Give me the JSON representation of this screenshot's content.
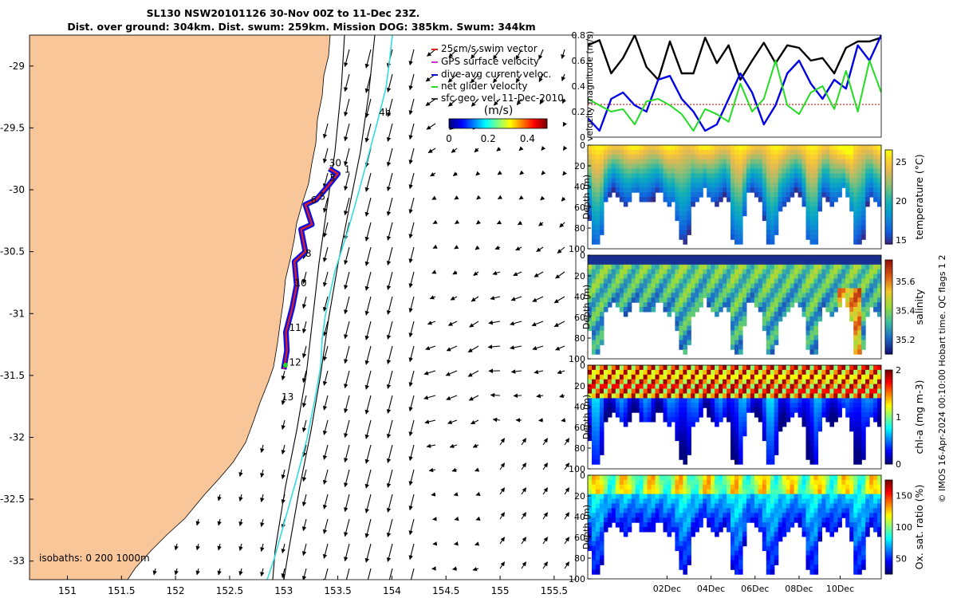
{
  "title_line1": "SL130 NSW20101126 30-Nov 00Z to 11-Dec 23Z.",
  "title_line2": "Dist. over ground: 304km. Dist. swum: 259km. Mission DOG: 385km. Swum: 344km",
  "side_credit": "© IMOS 16-Apr-2024 00:10:00 Hobart time. QC flags 1  2",
  "colors": {
    "land": "#f9c699",
    "track": "#e0201c",
    "vectors": "#1010e0",
    "net": "#22dd22",
    "isobath_deep": "#33dddd"
  },
  "chart_data": [
    {
      "type": "map",
      "x_ticks": [
        "151",
        "151.5",
        "152",
        "152.5",
        "153",
        "153.5",
        "154",
        "154.5",
        "155",
        "155.5"
      ],
      "y_ticks": [
        "-29",
        "-29.5",
        "-30",
        "-30.5",
        "-31",
        "-31.5",
        "-32",
        "-32.5",
        "-33"
      ],
      "xlim": [
        150.65,
        155.7
      ],
      "ylim": [
        -33.15,
        -28.75
      ],
      "legend": {
        "placement": "top-right",
        "items": [
          "25cm/s swim vector",
          "GPS surface velocity",
          "dive-avg current veloc.",
          "net glider velocity",
          "sfc geo. vel. 11-Dec-2010"
        ]
      },
      "colorbar": {
        "label": "(m/s)",
        "ticks": [
          "0",
          "0.2",
          "0.4"
        ],
        "range": [
          0,
          0.5
        ]
      },
      "isobaths_label": "isobaths: 0   200 1000m",
      "day_labels": [
        {
          "text": "30",
          "lon": 153.42,
          "lat": -29.81
        },
        {
          "text": "1",
          "lon": 153.56,
          "lat": -29.86
        },
        {
          "text": "3",
          "lon": 153.42,
          "lat": -29.93
        },
        {
          "text": "5",
          "lon": 153.33,
          "lat": -30.08
        },
        {
          "text": "6",
          "lon": 153.25,
          "lat": -30.11
        },
        {
          "text": "8",
          "lon": 153.2,
          "lat": -30.54
        },
        {
          "text": "10",
          "lon": 153.1,
          "lat": -30.78
        },
        {
          "text": "11",
          "lon": 153.05,
          "lat": -31.14
        },
        {
          "text": "12",
          "lon": 153.05,
          "lat": -31.42
        },
        {
          "text": "13",
          "lon": 152.98,
          "lat": -31.7
        },
        {
          "text": "4h",
          "lon": 153.88,
          "lat": -29.4
        }
      ],
      "glider_track": [
        [
          153.42,
          -29.83
        ],
        [
          153.5,
          -29.87
        ],
        [
          153.4,
          -29.98
        ],
        [
          153.3,
          -30.08
        ],
        [
          153.2,
          -30.12
        ],
        [
          153.26,
          -30.28
        ],
        [
          153.16,
          -30.32
        ],
        [
          153.2,
          -30.5
        ],
        [
          153.1,
          -30.58
        ],
        [
          153.12,
          -30.77
        ],
        [
          153.08,
          -30.95
        ],
        [
          153.02,
          -31.15
        ],
        [
          153.03,
          -31.3
        ],
        [
          153.0,
          -31.45
        ]
      ]
    },
    {
      "type": "line",
      "ylabel": "velocity magnitude (m/s)",
      "ylim": [
        0,
        0.8
      ],
      "y_ticks": [
        "0",
        "0.2",
        "0.4",
        "0.6",
        "0.8"
      ],
      "series": [
        {
          "color": "#000000",
          "values": [
            0.72,
            0.76,
            0.5,
            0.62,
            0.8,
            0.55,
            0.45,
            0.75,
            0.5,
            0.5,
            0.78,
            0.58,
            0.72,
            0.45,
            0.6,
            0.74,
            0.58,
            0.72,
            0.7,
            0.6,
            0.62,
            0.5,
            0.7,
            0.75,
            0.75,
            0.78
          ]
        },
        {
          "color": "#0000e6",
          "values": [
            0.15,
            0.05,
            0.3,
            0.35,
            0.25,
            0.2,
            0.45,
            0.48,
            0.3,
            0.2,
            0.05,
            0.1,
            0.3,
            0.5,
            0.35,
            0.1,
            0.25,
            0.5,
            0.6,
            0.42,
            0.3,
            0.45,
            0.38,
            0.72,
            0.6,
            0.8
          ]
        },
        {
          "color": "#22dd22",
          "values": [
            0.3,
            0.25,
            0.2,
            0.22,
            0.1,
            0.28,
            0.3,
            0.25,
            0.18,
            0.05,
            0.22,
            0.18,
            0.12,
            0.42,
            0.2,
            0.3,
            0.6,
            0.25,
            0.18,
            0.35,
            0.4,
            0.22,
            0.52,
            0.2,
            0.6,
            0.35
          ]
        }
      ]
    },
    {
      "type": "heatmap",
      "ylabel": "Depth (m)",
      "variable": "temperature (°C)",
      "y_ticks": [
        "0",
        "20",
        "40",
        "60",
        "80",
        "100"
      ],
      "colorbar_ticks": [
        "15",
        "20",
        "25"
      ],
      "clim": [
        14.5,
        26.5
      ]
    },
    {
      "type": "heatmap",
      "ylabel": "Depth (m)",
      "variable": "salinity",
      "y_ticks": [
        "0",
        "20",
        "40",
        "60",
        "80",
        "100"
      ],
      "colorbar_ticks": [
        "35.2",
        "35.4",
        "35.6"
      ],
      "clim": [
        35.1,
        35.75
      ]
    },
    {
      "type": "heatmap",
      "ylabel": "Depth (m)",
      "variable": "chl-a (mg m-3)",
      "y_ticks": [
        "0",
        "20",
        "40",
        "60",
        "80",
        "100"
      ],
      "colorbar_ticks": [
        "0",
        "1",
        "2"
      ],
      "clim": [
        0,
        2
      ]
    },
    {
      "type": "heatmap",
      "ylabel": "Depth (m)",
      "variable": "Ox. sat. ratio (%)",
      "y_ticks": [
        "0",
        "20",
        "40",
        "60",
        "80",
        "100"
      ],
      "colorbar_ticks": [
        "50",
        "100",
        "150"
      ],
      "clim": [
        25,
        175
      ],
      "x_ticks": [
        "02Dec",
        "04Dec",
        "06Dec",
        "08Dec",
        "10Dec"
      ]
    }
  ]
}
